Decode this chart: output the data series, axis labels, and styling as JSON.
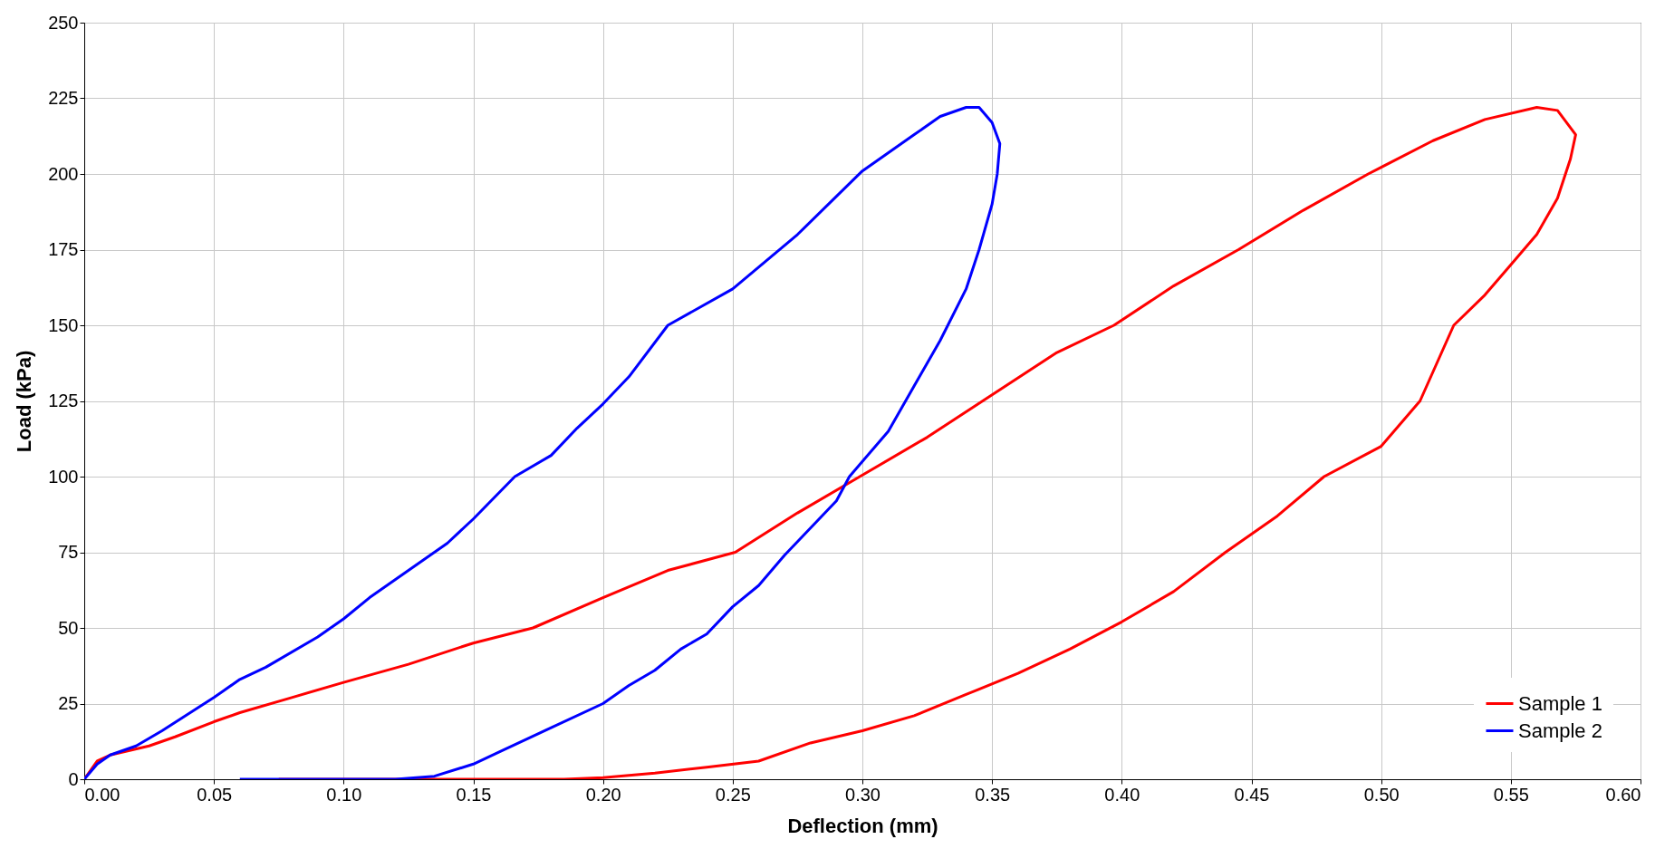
{
  "chart_data": {
    "type": "line",
    "xlabel": "Deflection (mm)",
    "ylabel": "Load (kPa)",
    "xlim": [
      0,
      0.6
    ],
    "xticks": [
      {
        "value": 0,
        "label": "0.00"
      },
      {
        "value": 0.05,
        "label": "0.05"
      },
      {
        "value": 0.1,
        "label": "0.10"
      },
      {
        "value": 0.15,
        "label": "0.15"
      },
      {
        "value": 0.2,
        "label": "0.20"
      },
      {
        "value": 0.25,
        "label": "0.25"
      },
      {
        "value": 0.3,
        "label": "0.30"
      },
      {
        "value": 0.35,
        "label": "0.35"
      },
      {
        "value": 0.4,
        "label": "0.40"
      },
      {
        "value": 0.45,
        "label": "0.45"
      },
      {
        "value": 0.5,
        "label": "0.50"
      },
      {
        "value": 0.55,
        "label": "0.55"
      },
      {
        "value": 0.6,
        "label": "0.60"
      }
    ],
    "ylim": [
      0,
      250
    ],
    "yticks": [
      0,
      25,
      50,
      75,
      100,
      125,
      150,
      175,
      200,
      225,
      250
    ],
    "grid": true,
    "legend": "bottom right",
    "marker": "none",
    "line_style": "solid",
    "series": [
      {
        "name": "Sample 1",
        "color": "#ff0000",
        "x": [
          0,
          0.005,
          0.01,
          0.025,
          0.035,
          0.05,
          0.06,
          0.08,
          0.1,
          0.125,
          0.15,
          0.173,
          0.2,
          0.225,
          0.251,
          0.275,
          0.299,
          0.325,
          0.35,
          0.375,
          0.397,
          0.42,
          0.445,
          0.47,
          0.495,
          0.52,
          0.54,
          0.56,
          0.568,
          0.575,
          0.573,
          0.568,
          0.56,
          0.55,
          0.54,
          0.528,
          0.515,
          0.5,
          0.478,
          0.46,
          0.44,
          0.42,
          0.4,
          0.38,
          0.36,
          0.34,
          0.32,
          0.3,
          0.28,
          0.26,
          0.24,
          0.22,
          0.2,
          0.185,
          0.075
        ],
        "values": [
          0,
          6,
          8,
          11,
          14,
          19,
          22,
          27,
          32,
          38,
          45,
          50,
          60,
          69,
          75,
          88,
          100,
          113,
          127,
          141,
          150,
          163,
          175,
          188,
          200,
          211,
          218,
          222,
          221,
          213,
          205,
          192,
          180,
          170,
          160,
          150,
          125,
          110,
          100,
          87,
          75,
          62,
          52,
          43,
          35,
          28,
          21,
          16,
          12,
          6,
          4,
          2,
          0.5,
          0,
          0
        ]
      },
      {
        "name": "Sample 2",
        "color": "#0000ff",
        "x": [
          0,
          0.005,
          0.01,
          0.02,
          0.03,
          0.05,
          0.06,
          0.07,
          0.09,
          0.1,
          0.11,
          0.125,
          0.14,
          0.15,
          0.166,
          0.18,
          0.19,
          0.2,
          0.21,
          0.225,
          0.25,
          0.275,
          0.3,
          0.32,
          0.33,
          0.34,
          0.345,
          0.35,
          0.353,
          0.352,
          0.35,
          0.345,
          0.34,
          0.33,
          0.32,
          0.31,
          0.295,
          0.29,
          0.28,
          0.27,
          0.26,
          0.25,
          0.24,
          0.23,
          0.22,
          0.21,
          0.2,
          0.18,
          0.16,
          0.15,
          0.135,
          0.12,
          0.06
        ],
        "values": [
          0,
          5,
          8,
          11,
          16,
          27,
          33,
          37,
          47,
          53,
          60,
          69,
          78,
          86,
          100,
          107,
          116,
          124,
          133,
          150,
          162,
          180,
          201,
          213,
          219,
          222,
          222,
          217,
          210,
          200,
          190,
          175,
          162,
          145,
          130,
          115,
          100,
          92,
          83,
          74,
          64,
          57,
          48,
          43,
          36,
          31,
          25,
          17,
          9,
          5,
          1,
          0,
          0
        ]
      }
    ]
  }
}
